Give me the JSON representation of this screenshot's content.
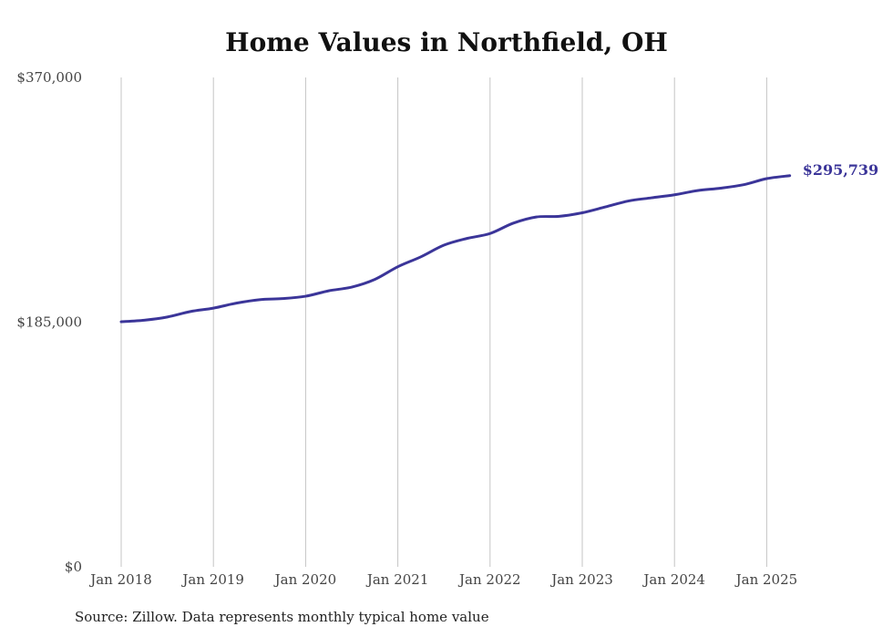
{
  "chart_data": {
    "type": "line",
    "title": "Home Values in Northfield, OH",
    "xlabel": "",
    "ylabel": "",
    "ylim": [
      0,
      370000
    ],
    "y_ticks": [
      "$0",
      "$185,000",
      "$370,000"
    ],
    "y_tick_values": [
      0,
      185000,
      370000
    ],
    "x_ticks": [
      "Jan 2018",
      "Jan 2019",
      "Jan 2020",
      "Jan 2021",
      "Jan 2022",
      "Jan 2023",
      "Jan 2024",
      "Jan 2025"
    ],
    "x_tick_values": [
      "2018-01",
      "2019-01",
      "2020-01",
      "2021-01",
      "2022-01",
      "2023-01",
      "2024-01",
      "2025-01"
    ],
    "grid": "vertical",
    "line_color": "#3b3599",
    "end_label": "$295,739",
    "series": [
      {
        "name": "",
        "x": [
          "2018-01",
          "2018-04",
          "2018-07",
          "2018-10",
          "2019-01",
          "2019-04",
          "2019-07",
          "2019-10",
          "2020-01",
          "2020-04",
          "2020-07",
          "2020-10",
          "2021-01",
          "2021-04",
          "2021-07",
          "2021-10",
          "2022-01",
          "2022-04",
          "2022-07",
          "2022-10",
          "2023-01",
          "2023-04",
          "2023-07",
          "2023-10",
          "2024-01",
          "2024-04",
          "2024-07",
          "2024-10",
          "2025-01",
          "2025-04"
        ],
        "values": [
          185300,
          186500,
          188900,
          193000,
          195600,
          199400,
          202000,
          202800,
          204600,
          208700,
          211500,
          217300,
          226900,
          234400,
          243200,
          248300,
          252000,
          259800,
          264500,
          265000,
          267700,
          272100,
          276600,
          279000,
          281300,
          284500,
          286300,
          288900,
          293500,
          295739
        ]
      }
    ]
  },
  "source_note": "Source: Zillow. Data represents monthly typical home value"
}
